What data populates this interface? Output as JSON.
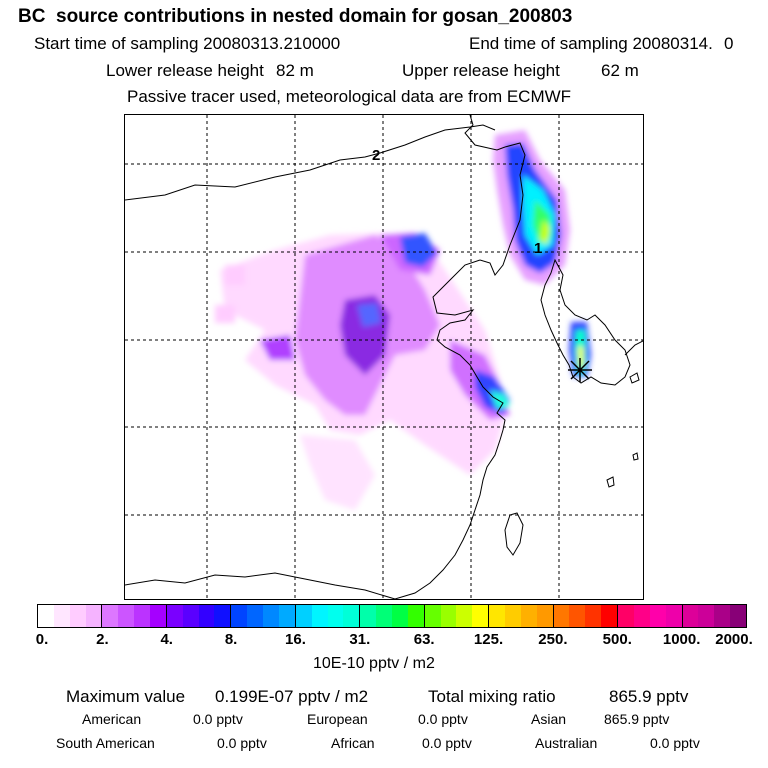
{
  "header": {
    "title": "BC  source contributions in nested domain for gosan_200803",
    "start_label": "Start time of sampling 20080313.210000",
    "end_label": "End time of sampling 20080314.",
    "end_value": "0",
    "lower_label": "Lower release height",
    "lower_value": "82 m",
    "upper_label": "Upper release height",
    "upper_value": "62 m",
    "note": "Passive tracer used, meteorological data are from ECMWF"
  },
  "map": {
    "labels": [
      "2",
      "1"
    ],
    "receptor_marker": "star-icon",
    "colors": {
      "low": "#ffccff",
      "mid": "#8a2be2",
      "high": "#0000ff",
      "peak": "#00ffcc",
      "land_line": "#000000",
      "grid": "#000000"
    }
  },
  "colorbar": {
    "ticks": [
      "0.",
      "2.",
      "4.",
      "8.",
      "16.",
      "31.",
      "63.",
      "125.",
      "250.",
      "500.",
      "1000.",
      "2000."
    ],
    "groups": [
      [
        "#ffffff",
        "#ffe6ff",
        "#ffccff",
        "#f5b3ff"
      ],
      [
        "#dd77ff",
        "#cc55ff",
        "#bb33ff",
        "#a500ff"
      ],
      [
        "#7a00ff",
        "#5a00ff",
        "#3300ff",
        "#1010ff"
      ],
      [
        "#0044ff",
        "#0066ff",
        "#0088ff",
        "#00aaff"
      ],
      [
        "#00d0ff",
        "#00f5ff",
        "#00ffee",
        "#00ffd8"
      ],
      [
        "#00ffaa",
        "#00ff77",
        "#00ff44",
        "#33ff00"
      ],
      [
        "#66ff00",
        "#99ff00",
        "#ccff00",
        "#ffff00"
      ],
      [
        "#ffe600",
        "#ffcc00",
        "#ffb000",
        "#ff9900"
      ],
      [
        "#ff7700",
        "#ff5500",
        "#ff3300",
        "#ff0000"
      ],
      [
        "#ff0066",
        "#ff0088",
        "#ff00aa",
        "#ee00aa"
      ],
      [
        "#dd0099",
        "#cc0099",
        "#aa0088",
        "#880077"
      ]
    ],
    "unit": "10E-10 pptv / m2"
  },
  "footer": {
    "max_label": "Maximum value",
    "max_value": "0.199E-07 pptv / m2",
    "total_label": "Total mixing ratio",
    "total_value": "865.9 pptv",
    "american_label": "American",
    "american_value": "0.0 pptv",
    "european_label": "European",
    "european_value": "0.0 pptv",
    "asian_label": "Asian",
    "asian_value": "865.9 pptv",
    "south_american_label": "South American",
    "south_american_value": "0.0 pptv",
    "african_label": "African",
    "african_value": "0.0 pptv",
    "australian_label": "Australian",
    "australian_value": "0.0 pptv"
  }
}
